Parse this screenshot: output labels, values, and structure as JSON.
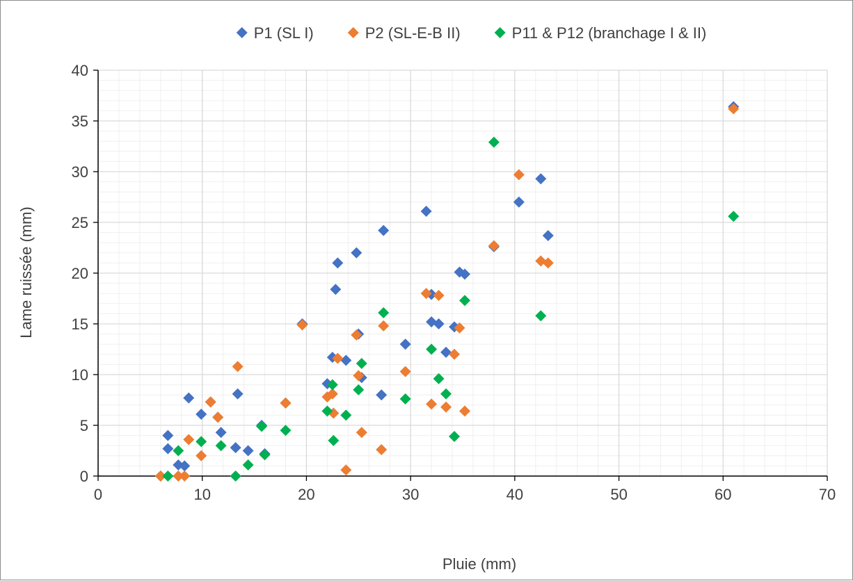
{
  "chart_data": {
    "type": "scatter",
    "xlabel": "Pluie (mm)",
    "ylabel": "Lame ruissée (mm)",
    "xlim": [
      0,
      70
    ],
    "ylim": [
      0,
      40
    ],
    "x_major_step": 10,
    "y_major_step": 5,
    "x_minor_step": 2,
    "y_minor_step": 1,
    "x_ticks": [
      "0",
      "10",
      "20",
      "30",
      "40",
      "50",
      "60",
      "70"
    ],
    "y_ticks": [
      "0",
      "5",
      "10",
      "15",
      "20",
      "25",
      "30",
      "35",
      "40"
    ],
    "grid": true,
    "legend_position": "top",
    "marker": "diamond-icon",
    "series": [
      {
        "name": "P1 (SL I)",
        "color": "#4472C4",
        "points": [
          [
            6.0,
            0.0
          ],
          [
            6.7,
            4.0
          ],
          [
            6.7,
            2.7
          ],
          [
            7.7,
            1.1
          ],
          [
            8.3,
            1.0
          ],
          [
            8.7,
            7.7
          ],
          [
            9.9,
            6.1
          ],
          [
            10.8,
            7.3
          ],
          [
            11.5,
            5.8
          ],
          [
            11.8,
            4.3
          ],
          [
            13.2,
            2.8
          ],
          [
            13.4,
            8.1
          ],
          [
            14.4,
            2.5
          ],
          [
            15.7,
            5.0
          ],
          [
            16.0,
            2.2
          ],
          [
            18.0,
            7.2
          ],
          [
            19.6,
            15.0
          ],
          [
            22.0,
            9.1
          ],
          [
            22.5,
            11.7
          ],
          [
            22.8,
            18.4
          ],
          [
            23.0,
            21.0
          ],
          [
            23.8,
            11.4
          ],
          [
            24.8,
            22.0
          ],
          [
            25.0,
            14.0
          ],
          [
            25.3,
            9.7
          ],
          [
            27.2,
            8.0
          ],
          [
            27.4,
            24.2
          ],
          [
            29.5,
            13.0
          ],
          [
            31.5,
            26.1
          ],
          [
            32.0,
            17.9
          ],
          [
            32.0,
            15.2
          ],
          [
            32.7,
            15.0
          ],
          [
            33.4,
            12.2
          ],
          [
            34.2,
            14.7
          ],
          [
            34.7,
            20.1
          ],
          [
            35.2,
            19.9
          ],
          [
            38.0,
            22.6
          ],
          [
            40.4,
            27.0
          ],
          [
            42.5,
            29.3
          ],
          [
            43.2,
            23.7
          ],
          [
            61.0,
            36.4
          ]
        ]
      },
      {
        "name": "P2 (SL-E-B II)",
        "color": "#ED7D31",
        "points": [
          [
            6.0,
            0.0
          ],
          [
            7.7,
            0.0
          ],
          [
            8.3,
            0.0
          ],
          [
            8.7,
            3.6
          ],
          [
            9.9,
            2.0
          ],
          [
            10.8,
            7.3
          ],
          [
            11.5,
            5.8
          ],
          [
            13.4,
            10.8
          ],
          [
            18.0,
            7.2
          ],
          [
            19.6,
            14.9
          ],
          [
            22.0,
            7.8
          ],
          [
            22.5,
            8.1
          ],
          [
            22.6,
            6.2
          ],
          [
            23.0,
            11.6
          ],
          [
            23.8,
            0.6
          ],
          [
            24.8,
            13.9
          ],
          [
            25.0,
            9.9
          ],
          [
            25.3,
            4.3
          ],
          [
            27.2,
            2.6
          ],
          [
            27.4,
            14.8
          ],
          [
            29.5,
            10.3
          ],
          [
            31.5,
            18.0
          ],
          [
            32.0,
            7.1
          ],
          [
            32.7,
            17.8
          ],
          [
            33.4,
            6.8
          ],
          [
            34.2,
            12.0
          ],
          [
            34.7,
            14.6
          ],
          [
            35.2,
            6.4
          ],
          [
            38.0,
            22.7
          ],
          [
            40.4,
            29.7
          ],
          [
            42.5,
            21.2
          ],
          [
            43.2,
            21.0
          ],
          [
            61.0,
            36.2
          ]
        ]
      },
      {
        "name": "P11 & P12 (branchage I & II)",
        "color": "#00B050",
        "points": [
          [
            6.7,
            0.0
          ],
          [
            7.7,
            2.5
          ],
          [
            9.9,
            3.4
          ],
          [
            11.8,
            3.0
          ],
          [
            13.2,
            0.0
          ],
          [
            14.4,
            1.1
          ],
          [
            15.7,
            4.9
          ],
          [
            16.0,
            2.1
          ],
          [
            18.0,
            4.5
          ],
          [
            22.0,
            6.4
          ],
          [
            22.5,
            9.0
          ],
          [
            22.6,
            3.5
          ],
          [
            23.8,
            6.0
          ],
          [
            25.0,
            8.5
          ],
          [
            25.3,
            11.1
          ],
          [
            27.4,
            16.1
          ],
          [
            29.5,
            7.6
          ],
          [
            32.0,
            12.5
          ],
          [
            32.7,
            9.6
          ],
          [
            33.4,
            8.1
          ],
          [
            34.2,
            3.9
          ],
          [
            35.2,
            17.3
          ],
          [
            38.0,
            32.9
          ],
          [
            42.5,
            15.8
          ],
          [
            61.0,
            25.6
          ]
        ]
      }
    ]
  }
}
